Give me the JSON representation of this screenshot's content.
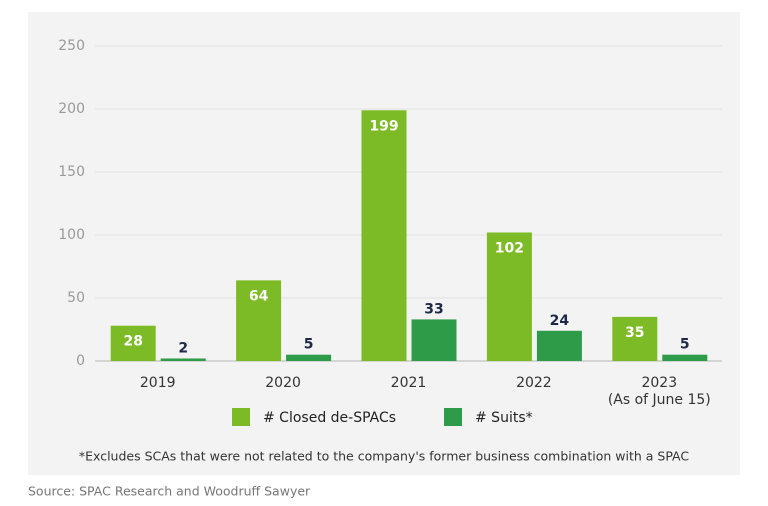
{
  "chart_data": {
    "type": "bar",
    "categories": [
      "2019",
      "2020",
      "2021",
      "2022",
      "2023\n(As of June 15)"
    ],
    "series": [
      {
        "name": "# Closed de-SPACs",
        "color": "#7dbb26",
        "values": [
          28,
          64,
          199,
          102,
          35
        ]
      },
      {
        "name": "# Suits*",
        "color": "#2e9b48",
        "values": [
          2,
          5,
          33,
          24,
          5
        ]
      }
    ],
    "ylim": [
      0,
      250
    ],
    "yticks": [
      0,
      50,
      100,
      150,
      200,
      250
    ],
    "grid": true,
    "legend": "bottom",
    "footnote": "*Excludes SCAs that were not related to the company's former business combination with a SPAC",
    "source": "Source: SPAC Research and Woodruff Sawyer"
  }
}
